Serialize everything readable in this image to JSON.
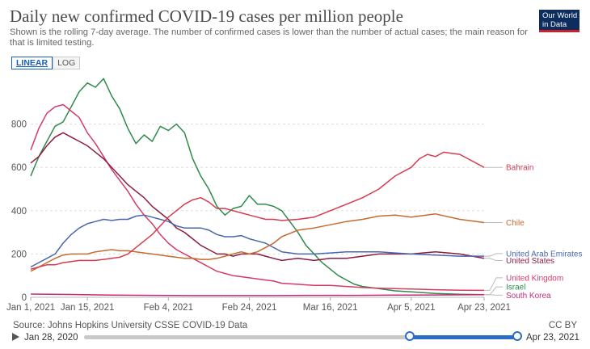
{
  "header": {
    "title": "Daily new confirmed COVID-19 cases per million people",
    "subtitle": "Shown is the rolling 7-day average. The number of confirmed cases is lower than the number of actual cases; the main reason for that is limited testing.",
    "logo_line1": "Our World",
    "logo_line2": "in Data"
  },
  "scale_toggle": {
    "linear": "LINEAR",
    "log": "LOG"
  },
  "footer": {
    "source": "Source: Johns Hopkins University CSSE COVID-19 Data",
    "license": "CC BY",
    "timeline_start": "Jan 28, 2020",
    "timeline_end": "Apr 23, 2021"
  },
  "chart_data": {
    "type": "line",
    "title": "Daily new confirmed COVID-19 cases per million people",
    "ylim": [
      0,
      1000
    ],
    "yticks": [
      0,
      200,
      400,
      600,
      800
    ],
    "x_range_days": [
      0,
      112
    ],
    "x_tick_days": [
      0,
      14,
      34,
      54,
      74,
      94,
      112
    ],
    "x_tick_labels": [
      "Jan 1, 2021",
      "Jan 15, 2021",
      "Feb 4, 2021",
      "Feb 24, 2021",
      "Mar 16, 2021",
      "Apr 5, 2021",
      "Apr 23, 2021"
    ],
    "series": [
      {
        "name": "Israel",
        "color": "#2e8b4a",
        "label_day": 112,
        "points": [
          [
            0,
            560
          ],
          [
            2,
            650
          ],
          [
            4,
            720
          ],
          [
            6,
            790
          ],
          [
            8,
            810
          ],
          [
            10,
            880
          ],
          [
            12,
            950
          ],
          [
            14,
            990
          ],
          [
            16,
            970
          ],
          [
            18,
            1010
          ],
          [
            20,
            930
          ],
          [
            22,
            870
          ],
          [
            24,
            780
          ],
          [
            26,
            710
          ],
          [
            28,
            750
          ],
          [
            30,
            720
          ],
          [
            32,
            790
          ],
          [
            34,
            770
          ],
          [
            36,
            800
          ],
          [
            38,
            760
          ],
          [
            40,
            640
          ],
          [
            42,
            560
          ],
          [
            44,
            500
          ],
          [
            46,
            420
          ],
          [
            48,
            380
          ],
          [
            50,
            410
          ],
          [
            52,
            420
          ],
          [
            54,
            470
          ],
          [
            56,
            430
          ],
          [
            58,
            430
          ],
          [
            60,
            420
          ],
          [
            62,
            400
          ],
          [
            64,
            350
          ],
          [
            66,
            300
          ],
          [
            68,
            240
          ],
          [
            70,
            200
          ],
          [
            72,
            160
          ],
          [
            74,
            130
          ],
          [
            76,
            100
          ],
          [
            78,
            80
          ],
          [
            80,
            60
          ],
          [
            82,
            50
          ],
          [
            86,
            40
          ],
          [
            90,
            30
          ],
          [
            94,
            25
          ],
          [
            100,
            18
          ],
          [
            106,
            14
          ],
          [
            112,
            12
          ]
        ]
      },
      {
        "name": "United Kingdom",
        "color": "#d43b66",
        "label_day": 112,
        "points": [
          [
            0,
            680
          ],
          [
            2,
            780
          ],
          [
            4,
            850
          ],
          [
            6,
            880
          ],
          [
            8,
            890
          ],
          [
            10,
            860
          ],
          [
            12,
            830
          ],
          [
            14,
            760
          ],
          [
            16,
            710
          ],
          [
            18,
            650
          ],
          [
            20,
            590
          ],
          [
            22,
            540
          ],
          [
            24,
            490
          ],
          [
            26,
            430
          ],
          [
            28,
            380
          ],
          [
            30,
            340
          ],
          [
            32,
            290
          ],
          [
            34,
            250
          ],
          [
            36,
            220
          ],
          [
            38,
            200
          ],
          [
            40,
            180
          ],
          [
            42,
            160
          ],
          [
            44,
            140
          ],
          [
            46,
            120
          ],
          [
            48,
            110
          ],
          [
            50,
            100
          ],
          [
            52,
            95
          ],
          [
            54,
            90
          ],
          [
            56,
            85
          ],
          [
            58,
            80
          ],
          [
            60,
            75
          ],
          [
            62,
            65
          ],
          [
            66,
            60
          ],
          [
            70,
            55
          ],
          [
            74,
            55
          ],
          [
            78,
            50
          ],
          [
            82,
            45
          ],
          [
            86,
            42
          ],
          [
            90,
            40
          ],
          [
            94,
            38
          ],
          [
            100,
            35
          ],
          [
            106,
            33
          ],
          [
            112,
            32
          ]
        ]
      },
      {
        "name": "United States",
        "color": "#8c1d40",
        "label_day": 112,
        "points": [
          [
            0,
            620
          ],
          [
            2,
            650
          ],
          [
            4,
            700
          ],
          [
            6,
            740
          ],
          [
            8,
            760
          ],
          [
            10,
            740
          ],
          [
            12,
            720
          ],
          [
            14,
            700
          ],
          [
            16,
            670
          ],
          [
            18,
            640
          ],
          [
            20,
            600
          ],
          [
            22,
            560
          ],
          [
            24,
            520
          ],
          [
            26,
            490
          ],
          [
            28,
            460
          ],
          [
            30,
            420
          ],
          [
            32,
            390
          ],
          [
            34,
            360
          ],
          [
            36,
            320
          ],
          [
            38,
            300
          ],
          [
            40,
            270
          ],
          [
            42,
            240
          ],
          [
            44,
            220
          ],
          [
            46,
            200
          ],
          [
            48,
            200
          ],
          [
            50,
            190
          ],
          [
            52,
            200
          ],
          [
            54,
            200
          ],
          [
            56,
            200
          ],
          [
            58,
            190
          ],
          [
            60,
            180
          ],
          [
            62,
            170
          ],
          [
            66,
            180
          ],
          [
            70,
            170
          ],
          [
            74,
            180
          ],
          [
            78,
            180
          ],
          [
            82,
            190
          ],
          [
            86,
            200
          ],
          [
            90,
            200
          ],
          [
            94,
            200
          ],
          [
            100,
            210
          ],
          [
            106,
            200
          ],
          [
            112,
            180
          ]
        ]
      },
      {
        "name": "United Arab Emirates",
        "color": "#4a66ad",
        "label_day": 112,
        "points": [
          [
            0,
            140
          ],
          [
            2,
            160
          ],
          [
            4,
            180
          ],
          [
            6,
            200
          ],
          [
            8,
            250
          ],
          [
            10,
            290
          ],
          [
            12,
            320
          ],
          [
            14,
            340
          ],
          [
            16,
            350
          ],
          [
            18,
            360
          ],
          [
            20,
            355
          ],
          [
            22,
            360
          ],
          [
            24,
            360
          ],
          [
            26,
            375
          ],
          [
            28,
            380
          ],
          [
            30,
            370
          ],
          [
            32,
            360
          ],
          [
            34,
            350
          ],
          [
            36,
            330
          ],
          [
            38,
            320
          ],
          [
            40,
            320
          ],
          [
            42,
            320
          ],
          [
            44,
            310
          ],
          [
            46,
            290
          ],
          [
            48,
            280
          ],
          [
            50,
            280
          ],
          [
            52,
            285
          ],
          [
            54,
            270
          ],
          [
            56,
            260
          ],
          [
            58,
            250
          ],
          [
            60,
            230
          ],
          [
            62,
            210
          ],
          [
            66,
            200
          ],
          [
            70,
            200
          ],
          [
            74,
            205
          ],
          [
            78,
            210
          ],
          [
            82,
            210
          ],
          [
            86,
            210
          ],
          [
            90,
            205
          ],
          [
            94,
            200
          ],
          [
            100,
            195
          ],
          [
            106,
            190
          ],
          [
            112,
            190
          ]
        ]
      },
      {
        "name": "Chile",
        "color": "#c66b2e",
        "label_day": 112,
        "points": [
          [
            0,
            120
          ],
          [
            2,
            140
          ],
          [
            4,
            160
          ],
          [
            6,
            180
          ],
          [
            8,
            195
          ],
          [
            10,
            200
          ],
          [
            12,
            200
          ],
          [
            14,
            200
          ],
          [
            16,
            210
          ],
          [
            18,
            215
          ],
          [
            20,
            220
          ],
          [
            22,
            215
          ],
          [
            24,
            215
          ],
          [
            26,
            210
          ],
          [
            28,
            205
          ],
          [
            30,
            200
          ],
          [
            32,
            195
          ],
          [
            34,
            190
          ],
          [
            36,
            185
          ],
          [
            38,
            180
          ],
          [
            40,
            180
          ],
          [
            42,
            175
          ],
          [
            44,
            175
          ],
          [
            46,
            180
          ],
          [
            48,
            190
          ],
          [
            50,
            200
          ],
          [
            52,
            210
          ],
          [
            54,
            200
          ],
          [
            56,
            210
          ],
          [
            58,
            230
          ],
          [
            60,
            250
          ],
          [
            62,
            280
          ],
          [
            66,
            310
          ],
          [
            70,
            320
          ],
          [
            74,
            335
          ],
          [
            78,
            350
          ],
          [
            82,
            360
          ],
          [
            86,
            375
          ],
          [
            90,
            380
          ],
          [
            94,
            370
          ],
          [
            100,
            385
          ],
          [
            106,
            360
          ],
          [
            112,
            345
          ]
        ]
      },
      {
        "name": "Bahrain",
        "color": "#d63b50",
        "label_day": 112,
        "points": [
          [
            0,
            130
          ],
          [
            2,
            140
          ],
          [
            4,
            150
          ],
          [
            6,
            150
          ],
          [
            8,
            160
          ],
          [
            10,
            165
          ],
          [
            12,
            170
          ],
          [
            14,
            170
          ],
          [
            16,
            170
          ],
          [
            18,
            175
          ],
          [
            20,
            180
          ],
          [
            22,
            185
          ],
          [
            24,
            200
          ],
          [
            26,
            230
          ],
          [
            28,
            260
          ],
          [
            30,
            290
          ],
          [
            32,
            330
          ],
          [
            34,
            370
          ],
          [
            36,
            400
          ],
          [
            38,
            430
          ],
          [
            40,
            450
          ],
          [
            42,
            460
          ],
          [
            44,
            440
          ],
          [
            46,
            410
          ],
          [
            48,
            410
          ],
          [
            50,
            400
          ],
          [
            52,
            390
          ],
          [
            54,
            380
          ],
          [
            56,
            370
          ],
          [
            58,
            360
          ],
          [
            60,
            360
          ],
          [
            62,
            355
          ],
          [
            66,
            360
          ],
          [
            70,
            370
          ],
          [
            74,
            400
          ],
          [
            78,
            430
          ],
          [
            82,
            460
          ],
          [
            86,
            500
          ],
          [
            90,
            560
          ],
          [
            94,
            600
          ],
          [
            96,
            640
          ],
          [
            98,
            660
          ],
          [
            100,
            650
          ],
          [
            102,
            670
          ],
          [
            106,
            660
          ],
          [
            108,
            640
          ],
          [
            112,
            600
          ]
        ]
      },
      {
        "name": "South Korea",
        "color": "#c52a78",
        "label_day": 112,
        "points": [
          [
            0,
            15
          ],
          [
            10,
            13
          ],
          [
            20,
            10
          ],
          [
            30,
            9
          ],
          [
            40,
            8
          ],
          [
            50,
            8
          ],
          [
            60,
            8
          ],
          [
            70,
            9
          ],
          [
            80,
            9
          ],
          [
            90,
            10
          ],
          [
            100,
            11
          ],
          [
            112,
            12
          ]
        ]
      }
    ]
  }
}
